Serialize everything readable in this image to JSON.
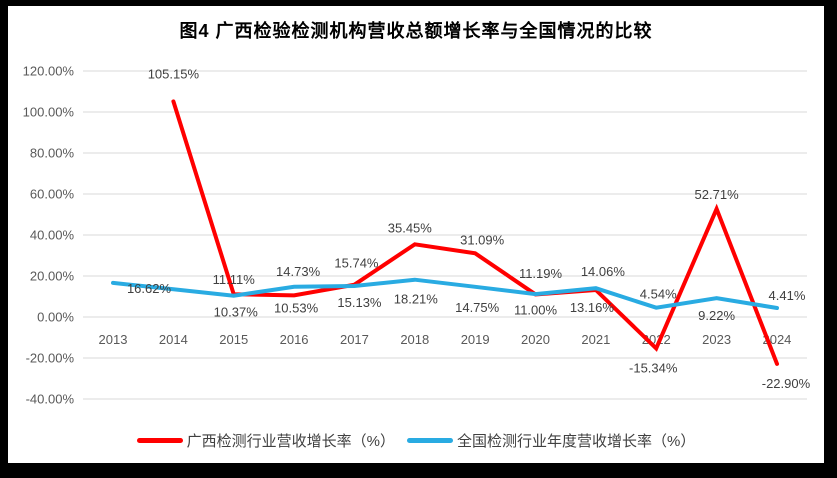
{
  "chart_data": {
    "type": "line",
    "title": "图4 广西检验检测机构营收总额增长率与全国情况的比较",
    "x_categories": [
      "2013",
      "2014",
      "2015",
      "2016",
      "2017",
      "2018",
      "2019",
      "2020",
      "2021",
      "2022",
      "2023",
      "2024"
    ],
    "y_axis": {
      "min": -40,
      "max": 120,
      "step": 20,
      "ticks": [
        "120.00%",
        "100.00%",
        "80.00%",
        "60.00%",
        "40.00%",
        "20.00%",
        "0.00%",
        "-20.00%",
        "-40.00%"
      ],
      "format": "percent"
    },
    "grid": true,
    "legend_position": "bottom",
    "colors": {
      "grid": "#D9D9D9",
      "axis_text": "#595959",
      "data_label_text": "#404040",
      "plot_background": "#FFFFFF",
      "frame": "#000000"
    },
    "series": [
      {
        "name": "广西检测行业营收增长率（%）",
        "color": "#FF0000",
        "values": [
          null,
          105.15,
          11.11,
          10.53,
          15.74,
          35.45,
          31.09,
          11.0,
          13.16,
          -15.34,
          52.71,
          -22.9
        ],
        "labels": [
          null,
          "105.15%",
          "11.11%",
          "10.53%",
          "15.74%",
          "35.45%",
          "31.09%",
          "11.00%",
          "13.16%",
          "-15.34%",
          "52.71%",
          "-22.90%"
        ],
        "label_offsets": [
          null,
          [
            0,
            -23
          ],
          [
            0,
            -10
          ],
          [
            2,
            17
          ],
          [
            2,
            -17
          ],
          [
            -5,
            -12
          ],
          [
            7,
            -9
          ],
          [
            0,
            20
          ],
          [
            -4,
            22
          ],
          [
            -3,
            24
          ],
          [
            0,
            -10
          ],
          [
            9,
            24
          ]
        ]
      },
      {
        "name": "全国检测行业年度营收增长率（%）",
        "color": "#29ABE2",
        "values": [
          16.62,
          13.5,
          10.37,
          14.73,
          15.13,
          18.21,
          14.75,
          11.19,
          14.06,
          4.54,
          9.22,
          4.41
        ],
        "labels": [
          "16.62%",
          null,
          "10.37%",
          "14.73%",
          "15.13%",
          "18.21%",
          "14.75%",
          "11.19%",
          "14.06%",
          "4.54%",
          "9.22%",
          "4.41%"
        ],
        "label_offsets": [
          [
            36,
            10
          ],
          null,
          [
            2,
            21
          ],
          [
            4,
            -11
          ],
          [
            5,
            21
          ],
          [
            1,
            24
          ],
          [
            2,
            25
          ],
          [
            5,
            -16
          ],
          [
            7,
            -12
          ],
          [
            2,
            -9
          ],
          [
            0,
            22
          ],
          [
            10,
            -8
          ]
        ]
      }
    ]
  }
}
